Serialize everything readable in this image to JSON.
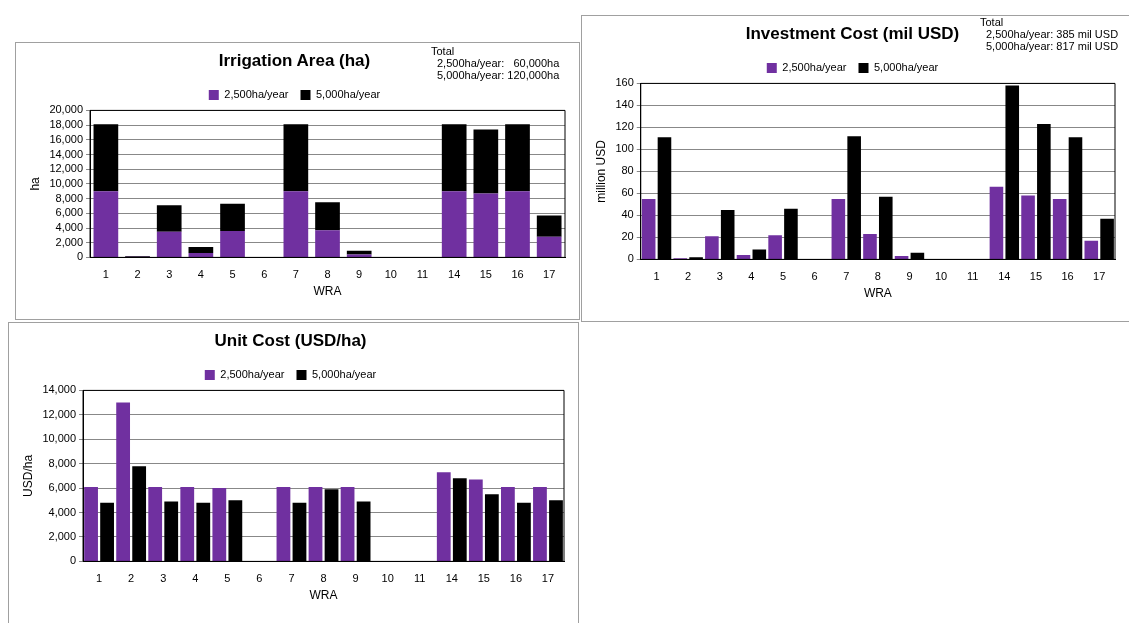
{
  "chart_data": [
    {
      "type": "bar",
      "title": "Irrigation Area (ha)",
      "xlabel": "WRA",
      "ylabel": "ha",
      "stacked": true,
      "grid": "y",
      "legend": "top",
      "annotations": [
        "Total",
        "2,500ha/year:   60,000ha",
        "5,000ha/year: 120,000ha"
      ],
      "categories": [
        "1",
        "2",
        "3",
        "4",
        "5",
        "6",
        "7",
        "8",
        "9",
        "10",
        "11",
        "14",
        "15",
        "16",
        "17"
      ],
      "series": [
        {
          "name": "2,500ha/year",
          "color": "#7030a0",
          "values": [
            9000,
            100,
            3500,
            600,
            3600,
            null,
            9000,
            3700,
            400,
            null,
            null,
            9000,
            8700,
            9000,
            2800
          ]
        },
        {
          "name": "5,000ha/year",
          "color": "#000000",
          "values": [
            9100,
            100,
            3600,
            800,
            3700,
            null,
            9100,
            3800,
            500,
            null,
            null,
            9100,
            8700,
            9100,
            2900
          ]
        }
      ],
      "ylim": [
        0,
        20000
      ],
      "yticks": [
        {
          "value": 0,
          "label": "0"
        },
        {
          "value": 2000,
          "label": "2,000"
        },
        {
          "value": 4000,
          "label": "4,000"
        },
        {
          "value": 6000,
          "label": "6,000"
        },
        {
          "value": 8000,
          "label": "8,000"
        },
        {
          "value": 10000,
          "label": "10,000"
        },
        {
          "value": 12000,
          "label": "12,000"
        },
        {
          "value": 14000,
          "label": "14,000"
        },
        {
          "value": 16000,
          "label": "16,000"
        },
        {
          "value": 18000,
          "label": "18,000"
        },
        {
          "value": 20000,
          "label": "20,000"
        }
      ]
    },
    {
      "type": "bar",
      "title": "Investment Cost (mil USD)",
      "xlabel": "WRA",
      "ylabel": "million USD",
      "grid": "y",
      "legend": "top",
      "annotations": [
        "Total",
        "2,500ha/year: 385 mil USD",
        "5,000ha/year: 817 mil USD"
      ],
      "categories": [
        "1",
        "2",
        "3",
        "4",
        "5",
        "6",
        "7",
        "8",
        "9",
        "10",
        "11",
        "14",
        "15",
        "16",
        "17"
      ],
      "series": [
        {
          "name": "2,500ha/year",
          "color": "#7030a0",
          "values": [
            55,
            1,
            21,
            4,
            22,
            null,
            55,
            23,
            3,
            null,
            null,
            66,
            58,
            55,
            17
          ]
        },
        {
          "name": "5,000ha/year",
          "color": "#000000",
          "values": [
            111,
            2,
            45,
            9,
            46,
            null,
            112,
            57,
            6,
            null,
            null,
            158,
            123,
            111,
            37
          ]
        }
      ],
      "ylim": [
        0,
        160
      ],
      "yticks": [
        0,
        20,
        40,
        60,
        80,
        100,
        120,
        140,
        160
      ]
    },
    {
      "type": "bar",
      "title": "Unit Cost (USD/ha)",
      "xlabel": "WRA",
      "ylabel": "USD/ha",
      "grid": "y",
      "legend": "top",
      "categories": [
        "1",
        "2",
        "3",
        "4",
        "5",
        "6",
        "7",
        "8",
        "9",
        "10",
        "11",
        "14",
        "15",
        "16",
        "17"
      ],
      "series": [
        {
          "name": "2,500ha/year",
          "color": "#7030a0",
          "values": [
            6100,
            13000,
            6100,
            6100,
            6000,
            null,
            6100,
            6100,
            6100,
            null,
            null,
            7300,
            6700,
            6100,
            6100
          ]
        },
        {
          "name": "5,000ha/year",
          "color": "#000000",
          "values": [
            4800,
            7800,
            4900,
            4800,
            5000,
            null,
            4800,
            5900,
            4900,
            null,
            null,
            6800,
            5500,
            4800,
            5000
          ]
        }
      ],
      "ylim": [
        0,
        14000
      ],
      "yticks": [
        {
          "value": 0,
          "label": "0"
        },
        {
          "value": 2000,
          "label": "2,000"
        },
        {
          "value": 4000,
          "label": "4,000"
        },
        {
          "value": 6000,
          "label": "6,000"
        },
        {
          "value": 8000,
          "label": "8,000"
        },
        {
          "value": 10000,
          "label": "10,000"
        },
        {
          "value": 12000,
          "label": "12,000"
        },
        {
          "value": 14000,
          "label": "14,000"
        }
      ]
    }
  ]
}
